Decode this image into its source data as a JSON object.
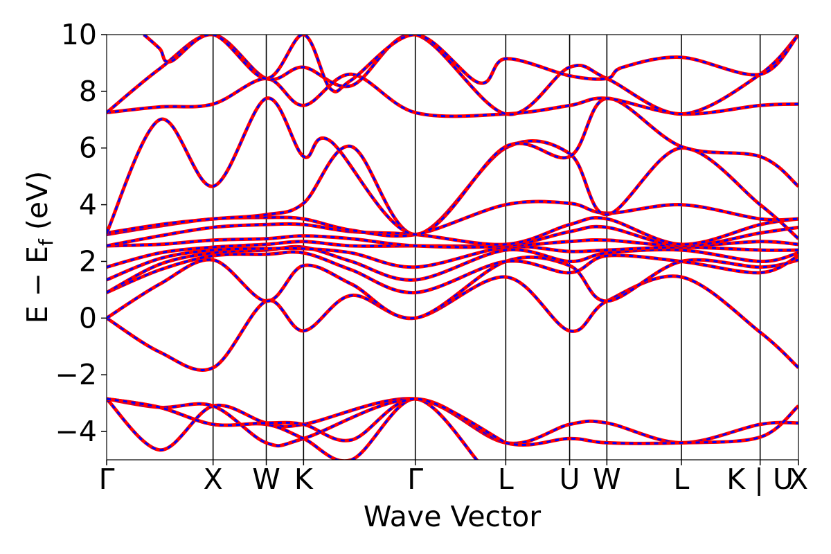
{
  "chart_data": {
    "type": "line",
    "xlabel": "Wave Vector",
    "ylabel": "E − E",
    "ylabel_sub": "f",
    "ylabel_unit": " (eV)",
    "ylim": [
      -5,
      10
    ],
    "xlim": [
      0,
      6.5
    ],
    "yticks": [
      -4,
      -2,
      0,
      2,
      4,
      6,
      8,
      10
    ],
    "yticklabels": [
      "−4",
      "−2",
      "0",
      "2",
      "4",
      "6",
      "8",
      "10"
    ],
    "kpoints": [
      {
        "label": "Γ",
        "x": 0.0
      },
      {
        "label": "X",
        "x": 1.0
      },
      {
        "label": "W",
        "x": 1.5
      },
      {
        "label": "K",
        "x": 1.85
      },
      {
        "label": "Γ",
        "x": 2.9
      },
      {
        "label": "L",
        "x": 3.75
      },
      {
        "label": "U",
        "x": 4.35
      },
      {
        "label": "W",
        "x": 4.7
      },
      {
        "label": "L",
        "x": 5.4
      },
      {
        "label": "K | U",
        "x": 6.14
      },
      {
        "label": "X",
        "x": 6.5
      }
    ],
    "grid": false,
    "legend": "none",
    "colors": {
      "solid": "#ff0000",
      "dashed": "#0000ff",
      "vlines": "#000000"
    },
    "series": [
      {
        "x": [
          0,
          0.5,
          1.0,
          1.5,
          1.85,
          2.9,
          3.75,
          4.35,
          4.7,
          5.4,
          6.14,
          6.5
        ],
        "y": [
          -2.85,
          -4.65,
          -3.1,
          -3.7,
          -3.75,
          -2.85,
          -4.4,
          -3.75,
          -3.7,
          -4.4,
          -3.75,
          -3.7
        ]
      },
      {
        "x": [
          0,
          0.5,
          1.0,
          1.5,
          1.85,
          2.9,
          3.75,
          4.35,
          4.7,
          5.4,
          6.14,
          6.5
        ],
        "y": [
          -2.85,
          -3.15,
          -3.1,
          -4.4,
          -4.25,
          -2.85,
          -4.4,
          -4.25,
          -4.4,
          -4.4,
          -4.2,
          -3.1
        ]
      },
      {
        "x": [
          0,
          0.5,
          1.0,
          1.5,
          1.85,
          2.3,
          2.9,
          3.5
        ],
        "y": [
          -2.85,
          -3.15,
          -3.75,
          -3.75,
          -4.25,
          -5.0,
          -2.85,
          -5.1
        ]
      },
      {
        "x": [
          0,
          0.5,
          1.0,
          1.5,
          1.85,
          2.3,
          2.9,
          3.75
        ],
        "y": [
          -2.85,
          -3.15,
          -3.75,
          -3.7,
          -3.75,
          -4.3,
          -2.85,
          -4.4
        ]
      },
      {
        "x": [
          0,
          0.5,
          1.0,
          1.5,
          1.85,
          2.3,
          2.9,
          3.75,
          4.35,
          4.7,
          5.4,
          6.14,
          6.5
        ],
        "y": [
          0.0,
          -1.2,
          -1.75,
          0.6,
          -0.45,
          0.8,
          0.0,
          1.45,
          -0.45,
          0.6,
          1.45,
          -0.5,
          -1.75
        ]
      },
      {
        "x": [
          0,
          0.5,
          1.0,
          1.5,
          1.85,
          2.3,
          2.9,
          3.75,
          4.35,
          4.7,
          5.4,
          6.14,
          6.5
        ],
        "y": [
          0.0,
          1.2,
          2.05,
          0.6,
          1.85,
          1.2,
          0.0,
          2.0,
          1.85,
          0.6,
          2.0,
          1.8,
          2.05
        ]
      },
      {
        "x": [
          0,
          0.5,
          1.0,
          1.5,
          1.85,
          2.3,
          2.9,
          3.75,
          4.35,
          4.7,
          5.4,
          6.14,
          6.5
        ],
        "y": [
          0.9,
          1.7,
          2.2,
          2.25,
          2.3,
          1.7,
          0.9,
          2.0,
          1.6,
          2.2,
          2.0,
          1.6,
          2.2
        ]
      },
      {
        "x": [
          0,
          0.5,
          1.0,
          1.5,
          1.85,
          2.3,
          2.9,
          3.75,
          4.35,
          4.7,
          5.4,
          6.14,
          6.5
        ],
        "y": [
          0.9,
          1.9,
          2.3,
          2.4,
          2.5,
          2.0,
          1.35,
          2.4,
          2.0,
          2.3,
          2.4,
          2.0,
          2.3
        ]
      },
      {
        "x": [
          0,
          0.5,
          1.0,
          1.5,
          1.85,
          2.3,
          2.9,
          3.75,
          4.35,
          4.7,
          5.4,
          6.14,
          6.5
        ],
        "y": [
          1.35,
          2.1,
          2.4,
          2.45,
          2.45,
          2.3,
          1.8,
          2.5,
          2.35,
          2.4,
          2.5,
          2.4,
          2.4
        ]
      },
      {
        "x": [
          0,
          0.5,
          1.0,
          1.5,
          1.85,
          2.3,
          2.9,
          3.75,
          4.35,
          4.7,
          5.4,
          6.14,
          6.5
        ],
        "y": [
          1.8,
          2.3,
          2.5,
          2.6,
          2.7,
          2.55,
          2.55,
          2.55,
          2.7,
          2.75,
          2.55,
          2.7,
          2.6
        ]
      },
      {
        "x": [
          0,
          0.5,
          1.0,
          1.5,
          1.85,
          2.3,
          2.9,
          3.75,
          4.35,
          4.7,
          5.4,
          6.14,
          6.5
        ],
        "y": [
          2.55,
          2.6,
          2.75,
          2.8,
          2.9,
          2.8,
          2.55,
          2.55,
          3.05,
          3.2,
          2.55,
          3.0,
          3.2
        ]
      },
      {
        "x": [
          0,
          0.5,
          1.0,
          1.5,
          1.85,
          2.3,
          2.9,
          3.75,
          4.35,
          4.7,
          5.4,
          6.14,
          6.5
        ],
        "y": [
          2.55,
          2.9,
          3.2,
          3.3,
          3.3,
          3.05,
          2.95,
          2.6,
          3.3,
          3.5,
          2.6,
          3.3,
          3.5
        ]
      },
      {
        "x": [
          0,
          0.5,
          1.0,
          1.5,
          1.85,
          2.3,
          2.9,
          3.75,
          4.35,
          4.7,
          5.4,
          6.14,
          6.5
        ],
        "y": [
          2.95,
          3.25,
          3.5,
          3.55,
          3.5,
          3.1,
          2.95,
          4.0,
          4.05,
          3.7,
          4.0,
          3.5,
          3.5
        ]
      },
      {
        "x": [
          0,
          0.5,
          1.0,
          1.5,
          1.85,
          2.3,
          2.9,
          3.75,
          4.35,
          4.7,
          5.4,
          6.14,
          6.5
        ],
        "y": [
          3.0,
          3.3,
          3.5,
          3.65,
          4.05,
          6.05,
          2.95,
          6.0,
          5.8,
          3.65,
          6.0,
          4.0,
          2.8
        ]
      },
      {
        "x": [
          0,
          0.5,
          1.0,
          1.5,
          1.85,
          2.1,
          2.9,
          3.75,
          4.35,
          4.7,
          5.4,
          6.14,
          6.5
        ],
        "y": [
          3.0,
          7.0,
          4.65,
          7.75,
          5.7,
          6.25,
          2.95,
          6.05,
          5.7,
          7.75,
          6.05,
          5.7,
          4.65
        ]
      },
      {
        "x": [
          0,
          0.5,
          1.0,
          1.5,
          1.85,
          2.3,
          2.9,
          3.75,
          4.35,
          4.7,
          5.4,
          6.14,
          6.5
        ],
        "y": [
          7.25,
          7.45,
          7.55,
          8.45,
          7.5,
          8.6,
          7.25,
          7.2,
          7.5,
          7.75,
          7.2,
          7.5,
          7.55
        ]
      },
      {
        "x": [
          0,
          0.5,
          1.0,
          1.5,
          1.85,
          2.3,
          2.9,
          3.75,
          4.35,
          4.7,
          5.4,
          6.14,
          6.5
        ],
        "y": [
          7.25,
          8.8,
          10.0,
          8.45,
          8.85,
          8.2,
          10.0,
          7.2,
          8.85,
          8.45,
          7.2,
          8.6,
          10.0
        ]
      },
      {
        "x": [
          0.35,
          0.5,
          0.6,
          1.0,
          1.5,
          1.85,
          2.1,
          2.3,
          2.9,
          3.5,
          3.75,
          4.35,
          4.7,
          4.85,
          5.4,
          6.14,
          6.5
        ],
        "y": [
          10.0,
          9.5,
          9.05,
          10.0,
          8.45,
          10.0,
          8.1,
          8.4,
          10.0,
          8.3,
          9.15,
          8.55,
          8.45,
          8.85,
          9.2,
          8.6,
          10.0
        ]
      }
    ]
  }
}
